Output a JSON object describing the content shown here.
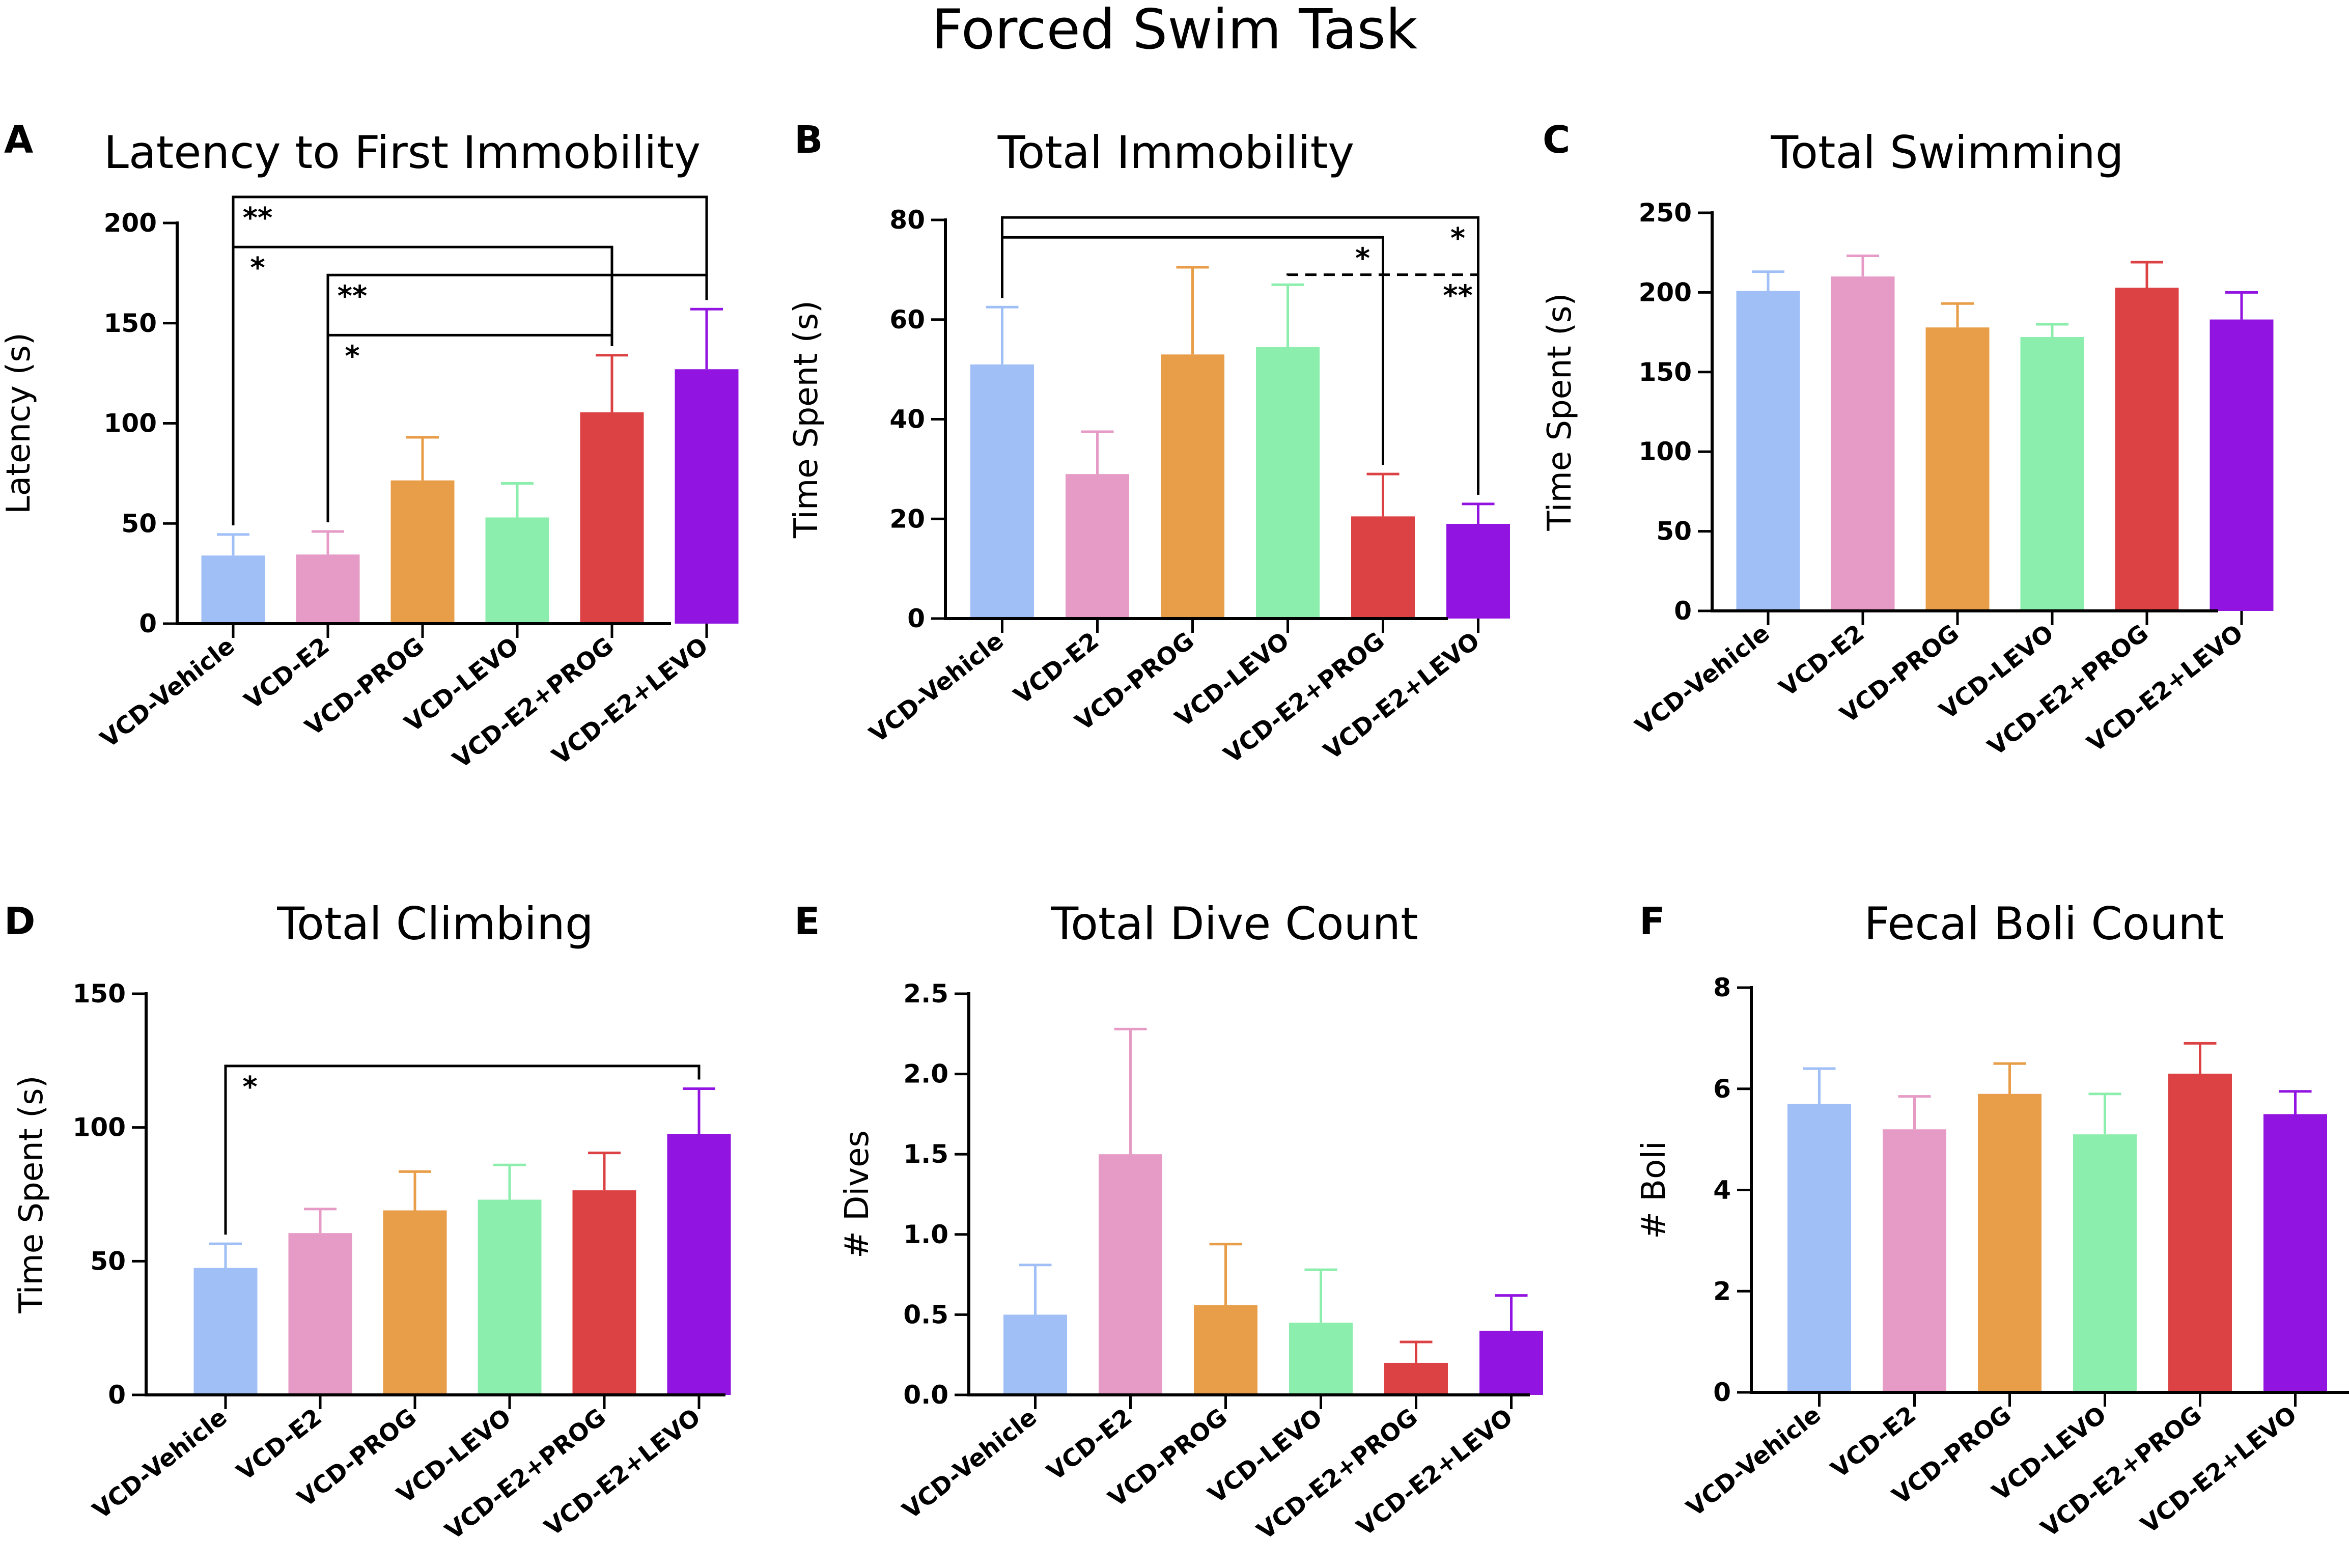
{
  "figure_title": "Forced Swim Task",
  "colors": {
    "VCD-Vehicle": "#9fbff6",
    "VCD-E2": "#e59bc6",
    "VCD-PROG": "#e89d48",
    "VCD-LEVO": "#8ceeac",
    "VCD-E2+PROG": "#dc4244",
    "VCD-E2+LEVO": "#9214e0"
  },
  "chart_data": [
    {
      "id": "A",
      "letter": "A",
      "type": "bar",
      "title": "Latency to First Immobility",
      "ylabel": "Latency (s)",
      "xlabel": "",
      "ylim": [
        0,
        200
      ],
      "yticks": [
        0,
        50,
        100,
        150,
        200
      ],
      "categories": [
        "VCD-Vehicle",
        "VCD-E2",
        "VCD-PROG",
        "VCD-LEVO",
        "VCD-E2+PROG",
        "VCD-E2+LEVO"
      ],
      "values": [
        34,
        34.5,
        71.5,
        53,
        105.5,
        127
      ],
      "errors": [
        10.5,
        11.5,
        21.5,
        17,
        28.5,
        30
      ],
      "brackets": [
        {
          "from": 0,
          "to": 5,
          "level": 213,
          "label": "**",
          "dashed": false
        },
        {
          "from": 0,
          "to": 4,
          "level": 188,
          "label": "*",
          "dashed": false
        },
        {
          "from": 1,
          "to": 5,
          "level": 174,
          "label": "**",
          "dashed": false
        },
        {
          "from": 1,
          "to": 4,
          "level": 144,
          "label": "*",
          "dashed": false
        }
      ]
    },
    {
      "id": "B",
      "letter": "B",
      "type": "bar",
      "title": "Total Immobility",
      "ylabel": "Time Spent (s)",
      "xlabel": "",
      "ylim": [
        0,
        80
      ],
      "yticks": [
        0,
        20,
        40,
        60,
        80
      ],
      "categories": [
        "VCD-Vehicle",
        "VCD-E2",
        "VCD-PROG",
        "VCD-LEVO",
        "VCD-E2+PROG",
        "VCD-E2+LEVO"
      ],
      "values": [
        51,
        29,
        53,
        54.5,
        20.5,
        19
      ],
      "errors": [
        11.5,
        8.5,
        17.5,
        12.5,
        8.5,
        4
      ],
      "brackets": [
        {
          "from": 0,
          "to": 5,
          "level": 80.5,
          "label": "*",
          "dashed": false
        },
        {
          "from": 0,
          "to": 4,
          "level": 76.5,
          "label": "*",
          "dashed": false
        },
        {
          "from": 3,
          "to": 5,
          "level": 69,
          "label": "**",
          "dashed": true
        }
      ]
    },
    {
      "id": "C",
      "letter": "C",
      "type": "bar",
      "title": "Total Swimming",
      "ylabel": "Time Spent (s)",
      "xlabel": "",
      "ylim": [
        0,
        250
      ],
      "yticks": [
        0,
        50,
        100,
        150,
        200,
        250
      ],
      "categories": [
        "VCD-Vehicle",
        "VCD-E2",
        "VCD-PROG",
        "VCD-LEVO",
        "VCD-E2+PROG",
        "VCD-E2+LEVO"
      ],
      "values": [
        201,
        210,
        178,
        172,
        203,
        183
      ],
      "errors": [
        12,
        13,
        15,
        8,
        16,
        17
      ],
      "brackets": []
    },
    {
      "id": "D",
      "letter": "D",
      "type": "bar",
      "title": "Total Climbing",
      "ylabel": "Time Spent (s)",
      "xlabel": "",
      "ylim": [
        0,
        150
      ],
      "yticks": [
        0,
        50,
        100,
        150
      ],
      "categories": [
        "VCD-Vehicle",
        "VCD-E2",
        "VCD-PROG",
        "VCD-LEVO",
        "VCD-E2+PROG",
        "VCD-E2+LEVO"
      ],
      "values": [
        47.5,
        60.5,
        69,
        73,
        76.5,
        97.5
      ],
      "errors": [
        9,
        9,
        14.5,
        13,
        14,
        17
      ],
      "brackets": [
        {
          "from": 0,
          "to": 5,
          "level": 123,
          "label": "*",
          "dashed": false
        }
      ]
    },
    {
      "id": "E",
      "letter": "E",
      "type": "bar",
      "title": "Total Dive Count",
      "ylabel": "# Dives",
      "xlabel": "",
      "ylim": [
        0,
        2.5
      ],
      "yticks": [
        0.0,
        0.5,
        1.0,
        1.5,
        2.0,
        2.5
      ],
      "categories": [
        "VCD-Vehicle",
        "VCD-E2",
        "VCD-PROG",
        "VCD-LEVO",
        "VCD-E2+PROG",
        "VCD-E2+LEVO"
      ],
      "values": [
        0.5,
        1.5,
        0.56,
        0.45,
        0.2,
        0.4
      ],
      "errors": [
        0.31,
        0.78,
        0.38,
        0.33,
        0.13,
        0.22
      ],
      "brackets": []
    },
    {
      "id": "F",
      "letter": "F",
      "type": "bar",
      "title": "Fecal Boli Count",
      "ylabel": "# Boli",
      "xlabel": "",
      "ylim": [
        0,
        8
      ],
      "yticks": [
        0,
        2,
        4,
        6,
        8
      ],
      "categories": [
        "VCD-Vehicle",
        "VCD-E2",
        "VCD-PROG",
        "VCD-LEVO",
        "VCD-E2+PROG",
        "VCD-E2+LEVO"
      ],
      "values": [
        5.7,
        5.2,
        5.9,
        5.1,
        6.3,
        5.5
      ],
      "errors": [
        0.7,
        0.65,
        0.6,
        0.8,
        0.6,
        0.45
      ],
      "brackets": []
    }
  ]
}
